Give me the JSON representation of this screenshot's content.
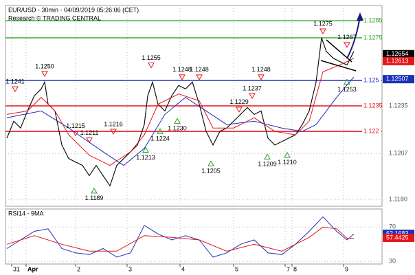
{
  "chart_data": [
    {
      "type": "line",
      "title": "EUR/USD - 30min - 04/09/2019 05:26:06 (CET)",
      "subtitle": "Research © TRADING CENTRAL",
      "xlim": [
        0,
        548
      ],
      "ylim": [
        1.1176,
        1.1294
      ],
      "yticks": [
        1.1235,
        1.1207,
        {
          "value": 1.118,
          "label": "1.1180"
        }
      ],
      "levels": [
        {
          "value": 1.1285,
          "label": "1.1285",
          "color": "#33a532"
        },
        {
          "value": 1.1275,
          "label": "1.1275",
          "color": "#33a532"
        },
        {
          "value": 1.125,
          "label": "1.125",
          "color": "#1c2fb8"
        },
        {
          "value": 1.1235,
          "label": "1.1235",
          "color": "#e5141b"
        },
        {
          "value": 1.122,
          "label": "1.122",
          "color": "#e5141b"
        }
      ],
      "price_boxes": [
        {
          "value": 1.12654,
          "color": "#000000"
        },
        {
          "value": 1.12613,
          "color": "#e5141b"
        },
        {
          "value": 1.12507,
          "color": "#1c2fb8"
        }
      ],
      "series": [
        {
          "color": "#111111",
          "x": [
            2,
            12,
            22,
            32,
            42,
            52,
            57,
            62,
            72,
            82,
            92,
            102,
            112,
            122,
            132,
            142,
            152,
            162,
            172,
            182,
            192,
            202,
            207,
            214,
            222,
            232,
            242,
            252,
            262,
            272,
            282,
            292,
            302,
            312,
            322,
            332,
            342,
            352,
            362,
            372,
            382,
            392,
            402,
            412,
            422,
            432,
            442,
            452,
            460,
            467,
            477,
            487,
            497,
            507
          ],
          "values": [
            1.1216,
            1.1226,
            1.1222,
            1.1232,
            1.1241,
            1.1245,
            1.1249,
            1.1236,
            1.1232,
            1.1212,
            1.1204,
            1.1202,
            1.12,
            1.1194,
            1.12,
            1.1194,
            1.1188,
            1.12,
            1.1204,
            1.1208,
            1.1212,
            1.1224,
            1.1241,
            1.1249,
            1.1236,
            1.1232,
            1.1241,
            1.1247,
            1.1245,
            1.1249,
            1.1236,
            1.122,
            1.1212,
            1.122,
            1.1222,
            1.1226,
            1.123,
            1.1234,
            1.123,
            1.1232,
            1.1216,
            1.1212,
            1.1214,
            1.1216,
            1.1218,
            1.1224,
            1.1232,
            1.1249,
            1.1275,
            1.1267,
            1.1263,
            1.1261,
            1.1259,
            1.1267
          ]
        },
        {
          "color": "#e5141b",
          "x": [
            2,
            32,
            52,
            72,
            92,
            122,
            152,
            182,
            202,
            222,
            252,
            282,
            302,
            332,
            362,
            392,
            422,
            442,
            462,
            492,
            507
          ],
          "values": [
            1.123,
            1.1232,
            1.124,
            1.1232,
            1.1218,
            1.1206,
            1.12,
            1.1208,
            1.1218,
            1.1236,
            1.1242,
            1.1238,
            1.1222,
            1.1222,
            1.1228,
            1.122,
            1.1218,
            1.1226,
            1.1255,
            1.126,
            1.1263
          ]
        },
        {
          "color": "#1c2fb8",
          "x": [
            2,
            52,
            92,
            142,
            172,
            202,
            232,
            262,
            292,
            322,
            362,
            402,
            432,
            452,
            482,
            507
          ],
          "values": [
            1.1228,
            1.1232,
            1.1222,
            1.1208,
            1.12,
            1.121,
            1.123,
            1.124,
            1.1232,
            1.1224,
            1.1226,
            1.1222,
            1.122,
            1.1224,
            1.124,
            1.1252
          ]
        }
      ],
      "annotations": [
        {
          "x": 14,
          "value": 1.1241,
          "label": "1.1241",
          "kind": "high"
        },
        {
          "x": 57,
          "value": 1.125,
          "label": "1.1250",
          "kind": "high"
        },
        {
          "x": 102,
          "value": 1.1215,
          "label": "1.1215",
          "kind": "high"
        },
        {
          "x": 122,
          "value": 1.1211,
          "label": "1.1211",
          "kind": "high"
        },
        {
          "x": 157,
          "value": 1.1216,
          "label": "1.1216",
          "kind": "high"
        },
        {
          "x": 212,
          "value": 1.1255,
          "label": "1.1255",
          "kind": "high"
        },
        {
          "x": 257,
          "value": 1.1248,
          "label": "1.1248",
          "kind": "high"
        },
        {
          "x": 282,
          "value": 1.1248,
          "label": "1.1248",
          "kind": "high"
        },
        {
          "x": 340,
          "value": 1.1229,
          "label": "1.1229",
          "kind": "high"
        },
        {
          "x": 359,
          "value": 1.1237,
          "label": "1.1237",
          "kind": "high"
        },
        {
          "x": 372,
          "value": 1.1248,
          "label": "1.1248",
          "kind": "high"
        },
        {
          "x": 462,
          "value": 1.1275,
          "label": "1.1275",
          "kind": "high"
        },
        {
          "x": 497,
          "value": 1.1267,
          "label": "1.1267",
          "kind": "high"
        },
        {
          "x": 204,
          "value": 1.1213,
          "label": "1.1213",
          "kind": "low"
        },
        {
          "x": 225,
          "value": 1.1224,
          "label": "1.1224",
          "kind": "low"
        },
        {
          "x": 250,
          "value": 1.123,
          "label": "1.1230",
          "kind": "low"
        },
        {
          "x": 129,
          "value": 1.1189,
          "label": "1.1189",
          "kind": "low"
        },
        {
          "x": 299,
          "value": 1.1205,
          "label": "1.1205",
          "kind": "low"
        },
        {
          "x": 381,
          "value": 1.1209,
          "label": "1.1209",
          "kind": "low"
        },
        {
          "x": 410,
          "value": 1.121,
          "label": "1.1210",
          "kind": "low"
        },
        {
          "x": 497,
          "value": 1.1253,
          "label": "1.1253",
          "kind": "low"
        }
      ]
    },
    {
      "type": "line",
      "title": "RSI14 - 9MA",
      "xlim": [
        0,
        548
      ],
      "ylim": [
        27,
        91
      ],
      "yticks": [
        70,
        30
      ],
      "xticks": [
        {
          "value": 9,
          "label": "31"
        },
        {
          "value": 30,
          "label": "Apr"
        },
        {
          "value": 102,
          "label": "2"
        },
        {
          "value": 177,
          "label": "3"
        },
        {
          "value": 254,
          "label": "4"
        },
        {
          "value": 332,
          "label": "5"
        },
        {
          "value": 407,
          "label": "7"
        },
        {
          "value": 417,
          "label": "8"
        },
        {
          "value": 492,
          "label": "9"
        }
      ],
      "price_boxes": [
        {
          "value": 62.1683,
          "color": "#1c2fb8"
        },
        {
          "value": 57.4425,
          "color": "#e5141b"
        }
      ],
      "series": [
        {
          "color": "#1c2fb8",
          "x": [
            2,
            22,
            42,
            62,
            82,
            102,
            122,
            142,
            162,
            182,
            202,
            222,
            242,
            262,
            282,
            302,
            322,
            342,
            362,
            382,
            402,
            422,
            442,
            462,
            482,
            497,
            507
          ],
          "values": [
            45,
            55,
            65,
            68,
            45,
            40,
            38,
            45,
            35,
            40,
            72,
            62,
            55,
            60,
            55,
            35,
            40,
            50,
            55,
            40,
            38,
            50,
            65,
            82,
            65,
            55,
            62
          ]
        },
        {
          "color": "#e5141b",
          "x": [
            2,
            42,
            82,
            122,
            162,
            202,
            242,
            282,
            322,
            362,
            402,
            442,
            462,
            482,
            497,
            507
          ],
          "values": [
            50,
            60,
            50,
            42,
            42,
            60,
            58,
            55,
            42,
            50,
            42,
            58,
            70,
            68,
            57,
            57
          ]
        }
      ]
    }
  ]
}
